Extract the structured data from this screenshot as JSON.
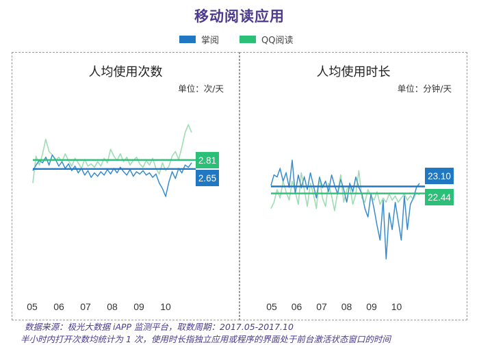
{
  "title": "移动阅读应用",
  "legend": [
    {
      "label": "掌阅",
      "color": "#1f78c1"
    },
    {
      "label": "QQ阅读",
      "color": "#2bbf77"
    }
  ],
  "colors": {
    "zhangyue": "#1f78c1",
    "qq": "#2bbf77",
    "qq_light": "#9fdcb4",
    "zy_light": "#6fb1e0"
  },
  "chart_data": [
    {
      "type": "line",
      "title": "人均使用次数",
      "unit": "单位：次/天",
      "x_ticks": [
        "05",
        "06",
        "07",
        "08",
        "09",
        "10"
      ],
      "reference_lines": [
        {
          "series": "QQ阅读",
          "value": 2.81,
          "label": "2.81"
        },
        {
          "series": "掌阅",
          "value": 2.65,
          "label": "2.65"
        }
      ],
      "ylim": [
        1.5,
        3.6
      ],
      "series": [
        {
          "name": "掌阅",
          "values": [
            2.62,
            2.72,
            2.8,
            2.76,
            2.86,
            2.72,
            2.9,
            2.82,
            2.7,
            2.78,
            2.66,
            2.74,
            2.62,
            2.7,
            2.58,
            2.66,
            2.54,
            2.62,
            2.5,
            2.58,
            2.52,
            2.6,
            2.54,
            2.64,
            2.56,
            2.66,
            2.58,
            2.68,
            2.6,
            2.54,
            2.64,
            2.52,
            2.6,
            2.56,
            2.62,
            2.54,
            2.58,
            2.5,
            2.56,
            2.4,
            2.3,
            2.16,
            2.42,
            2.6,
            2.48,
            2.66,
            2.58,
            2.72,
            2.68,
            2.76
          ]
        },
        {
          "name": "QQ阅读",
          "values": [
            2.4,
            2.88,
            2.72,
            2.92,
            3.18,
            2.96,
            2.9,
            2.8,
            2.86,
            2.78,
            2.92,
            2.8,
            2.7,
            2.84,
            2.76,
            2.66,
            2.82,
            2.7,
            2.74,
            2.68,
            2.78,
            2.7,
            2.84,
            2.76,
            3.0,
            2.88,
            2.8,
            2.92,
            2.78,
            2.86,
            2.72,
            2.8,
            2.86,
            2.74,
            2.68,
            2.8,
            2.72,
            2.84,
            2.66,
            2.56,
            2.76,
            2.62,
            2.7,
            2.88,
            2.96,
            2.82,
            3.04,
            3.3,
            3.44,
            3.3
          ]
        }
      ]
    },
    {
      "type": "line",
      "title": "人均使用时长",
      "unit": "单位：分钟/天",
      "x_ticks": [
        "05",
        "06",
        "07",
        "08",
        "09",
        "10"
      ],
      "reference_lines": [
        {
          "series": "掌阅",
          "value": 23.1,
          "label": "23.10"
        },
        {
          "series": "QQ阅读",
          "value": 22.44,
          "label": "22.44"
        }
      ],
      "ylim": [
        15.0,
        28.0
      ],
      "series": [
        {
          "name": "掌阅",
          "values": [
            23.2,
            24.2,
            24.0,
            24.8,
            23.6,
            24.4,
            23.0,
            25.6,
            22.4,
            24.2,
            23.0,
            24.0,
            22.8,
            24.4,
            23.2,
            22.0,
            24.0,
            23.0,
            23.6,
            22.6,
            24.2,
            23.2,
            22.4,
            23.8,
            22.8,
            21.6,
            23.4,
            22.6,
            24.0,
            23.0,
            22.4,
            21.0,
            20.2,
            22.4,
            21.0,
            19.4,
            18.0,
            21.8,
            16.2,
            20.6,
            19.0,
            21.6,
            19.8,
            18.0,
            22.2,
            19.0,
            21.4,
            22.0,
            23.0,
            23.4
          ]
        },
        {
          "name": "QQ阅读",
          "values": [
            21.0,
            21.6,
            22.8,
            22.0,
            23.6,
            22.6,
            21.8,
            23.6,
            22.6,
            21.4,
            24.4,
            22.8,
            21.2,
            23.4,
            22.4,
            21.0,
            24.0,
            22.0,
            21.2,
            23.4,
            22.2,
            20.8,
            22.6,
            24.2,
            21.6,
            22.8,
            23.2,
            21.4,
            22.4,
            24.6,
            22.0,
            21.6,
            22.8,
            22.2,
            21.8,
            22.6,
            21.4,
            22.0,
            21.6,
            22.4,
            21.8,
            22.2,
            21.6,
            22.0,
            22.4,
            21.8,
            22.2,
            21.9,
            22.5,
            22.3
          ]
        }
      ]
    }
  ],
  "source_line1": "数据来源：极光大数据 iAPP 监测平台，取数周期：2017.05-2017.10",
  "source_line2": "半小时内打开次数均统计为 1 次，使用时长指独立应用或程序的界面处于前台激活状态窗口的时间"
}
